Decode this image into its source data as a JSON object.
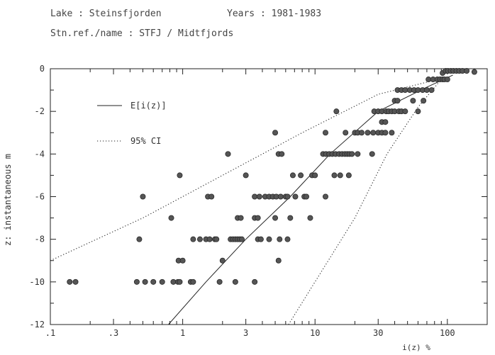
{
  "header": {
    "lake_label": "Lake : Steinsfjorden",
    "years_label": "Years : 1981-1983",
    "station_label": "Stn.ref./name : STFJ / Midtfjords"
  },
  "chart_data": {
    "type": "scatter",
    "title": "",
    "xlabel": "i(z) %",
    "ylabel": "z: instantaneous m",
    "x_scale": "log",
    "xlim": [
      0.1,
      200
    ],
    "ylim": [
      -12,
      0
    ],
    "x_ticks": [
      0.1,
      0.3,
      1,
      3,
      10,
      30,
      100
    ],
    "x_tick_labels": [
      ".1",
      ".3",
      "1",
      "3",
      "10",
      "30",
      "100"
    ],
    "y_ticks": [
      0,
      -2,
      -4,
      -6,
      -8,
      -10,
      -12
    ],
    "y_tick_labels": [
      "0",
      "-2",
      "-4",
      "-6",
      "-8",
      "-10",
      "-12"
    ],
    "grid": false,
    "legend_position": "top-left",
    "series": [
      {
        "name": "E[i(z)]",
        "style": "solid",
        "points": [
          [
            0.78,
            -12
          ],
          [
            1.5,
            -10
          ],
          [
            3,
            -8
          ],
          [
            6.5,
            -6
          ],
          [
            13,
            -4
          ],
          [
            30,
            -2
          ],
          [
            68,
            -0.9
          ],
          [
            110,
            -0.3
          ]
        ]
      },
      {
        "name": "95% CI",
        "style": "dotted",
        "points": [
          [
            0.1,
            -9
          ],
          [
            0.5,
            -7
          ],
          [
            2,
            -5
          ],
          [
            8,
            -3
          ],
          [
            30,
            -1.2
          ],
          [
            85,
            -0.5
          ]
        ]
      },
      {
        "name": "95% CI",
        "style": "dotted",
        "points": [
          [
            6.3,
            -12
          ],
          [
            10,
            -10
          ],
          [
            20,
            -7
          ],
          [
            35,
            -4
          ],
          [
            60,
            -1.8
          ],
          [
            90,
            -0.5
          ]
        ]
      },
      {
        "name": "",
        "style": "markers",
        "points": [
          [
            0.14,
            -10
          ],
          [
            0.155,
            -10
          ],
          [
            0.45,
            -10
          ],
          [
            0.52,
            -10
          ],
          [
            0.6,
            -10
          ],
          [
            0.7,
            -10
          ],
          [
            0.85,
            -10
          ],
          [
            0.92,
            -10
          ],
          [
            0.95,
            -10
          ],
          [
            1.15,
            -10
          ],
          [
            1.2,
            -10
          ],
          [
            1.9,
            -10
          ],
          [
            2.5,
            -10
          ],
          [
            3.5,
            -10
          ],
          [
            0.47,
            -8
          ],
          [
            1.2,
            -8
          ],
          [
            1.35,
            -8
          ],
          [
            1.5,
            -8
          ],
          [
            1.6,
            -8
          ],
          [
            1.75,
            -8
          ],
          [
            1.8,
            -8
          ],
          [
            2.3,
            -8
          ],
          [
            2.4,
            -8
          ],
          [
            2.5,
            -8
          ],
          [
            2.6,
            -8
          ],
          [
            2.7,
            -8
          ],
          [
            2.8,
            -8
          ],
          [
            3.7,
            -8
          ],
          [
            3.9,
            -8
          ],
          [
            4.5,
            -8
          ],
          [
            5.4,
            -8
          ],
          [
            6.2,
            -8
          ],
          [
            0.93,
            -9
          ],
          [
            1.0,
            -9
          ],
          [
            2.0,
            -9
          ],
          [
            5.3,
            -9
          ],
          [
            0.82,
            -7
          ],
          [
            2.6,
            -7
          ],
          [
            2.75,
            -7
          ],
          [
            3.5,
            -7
          ],
          [
            3.7,
            -7
          ],
          [
            5.0,
            -7
          ],
          [
            6.5,
            -7
          ],
          [
            9.2,
            -7
          ],
          [
            0.5,
            -6
          ],
          [
            1.55,
            -6
          ],
          [
            1.65,
            -6
          ],
          [
            3.5,
            -6
          ],
          [
            3.8,
            -6
          ],
          [
            4.2,
            -6
          ],
          [
            4.5,
            -6
          ],
          [
            4.8,
            -6
          ],
          [
            5.1,
            -6
          ],
          [
            5.5,
            -6
          ],
          [
            6.0,
            -6
          ],
          [
            6.2,
            -6
          ],
          [
            7.1,
            -6
          ],
          [
            8.3,
            -6
          ],
          [
            8.6,
            -6
          ],
          [
            12,
            -6
          ],
          [
            0.95,
            -5
          ],
          [
            3.0,
            -5
          ],
          [
            6.8,
            -5
          ],
          [
            7.8,
            -5
          ],
          [
            9.5,
            -5
          ],
          [
            10,
            -5
          ],
          [
            14,
            -5
          ],
          [
            15.5,
            -5
          ],
          [
            18,
            -5
          ],
          [
            2.2,
            -4
          ],
          [
            5.3,
            -4
          ],
          [
            5.6,
            -4
          ],
          [
            11.5,
            -4
          ],
          [
            12.1,
            -4
          ],
          [
            12.8,
            -4
          ],
          [
            13.5,
            -4
          ],
          [
            14.3,
            -4
          ],
          [
            15.2,
            -4
          ],
          [
            16,
            -4
          ],
          [
            16.8,
            -4
          ],
          [
            17.5,
            -4
          ],
          [
            18.2,
            -4
          ],
          [
            19,
            -4
          ],
          [
            21,
            -4
          ],
          [
            27,
            -4
          ],
          [
            5.0,
            -3
          ],
          [
            12,
            -3
          ],
          [
            17,
            -3
          ],
          [
            20,
            -3
          ],
          [
            21,
            -3
          ],
          [
            22.5,
            -3
          ],
          [
            25,
            -3
          ],
          [
            27.5,
            -3
          ],
          [
            30,
            -3
          ],
          [
            32,
            -3
          ],
          [
            34,
            -3
          ],
          [
            38,
            -3
          ],
          [
            32,
            -2.5
          ],
          [
            34,
            -2.5
          ],
          [
            14.5,
            -2
          ],
          [
            28,
            -2
          ],
          [
            30,
            -2
          ],
          [
            32,
            -2
          ],
          [
            34.5,
            -2
          ],
          [
            36,
            -2
          ],
          [
            38,
            -2
          ],
          [
            40,
            -2
          ],
          [
            43,
            -2
          ],
          [
            45,
            -2
          ],
          [
            48,
            -2
          ],
          [
            60,
            -2
          ],
          [
            40,
            -1.5
          ],
          [
            42,
            -1.5
          ],
          [
            55,
            -1.5
          ],
          [
            66,
            -1.5
          ],
          [
            42,
            -1
          ],
          [
            45,
            -1
          ],
          [
            48,
            -1
          ],
          [
            52,
            -1
          ],
          [
            56,
            -1
          ],
          [
            60,
            -1
          ],
          [
            65,
            -1
          ],
          [
            70,
            -1
          ],
          [
            76,
            -1
          ],
          [
            72,
            -0.5
          ],
          [
            78,
            -0.5
          ],
          [
            84,
            -0.5
          ],
          [
            88,
            -0.5
          ],
          [
            92,
            -0.5
          ],
          [
            95,
            -0.5
          ],
          [
            100,
            -0.5
          ],
          [
            92,
            -0.2
          ],
          [
            97,
            -0.1
          ],
          [
            101,
            -0.1
          ],
          [
            106,
            -0.1
          ],
          [
            111,
            -0.1
          ],
          [
            117,
            -0.1
          ],
          [
            123,
            -0.1
          ],
          [
            130,
            -0.1
          ],
          [
            140,
            -0.1
          ],
          [
            160,
            -0.15
          ]
        ]
      }
    ]
  }
}
